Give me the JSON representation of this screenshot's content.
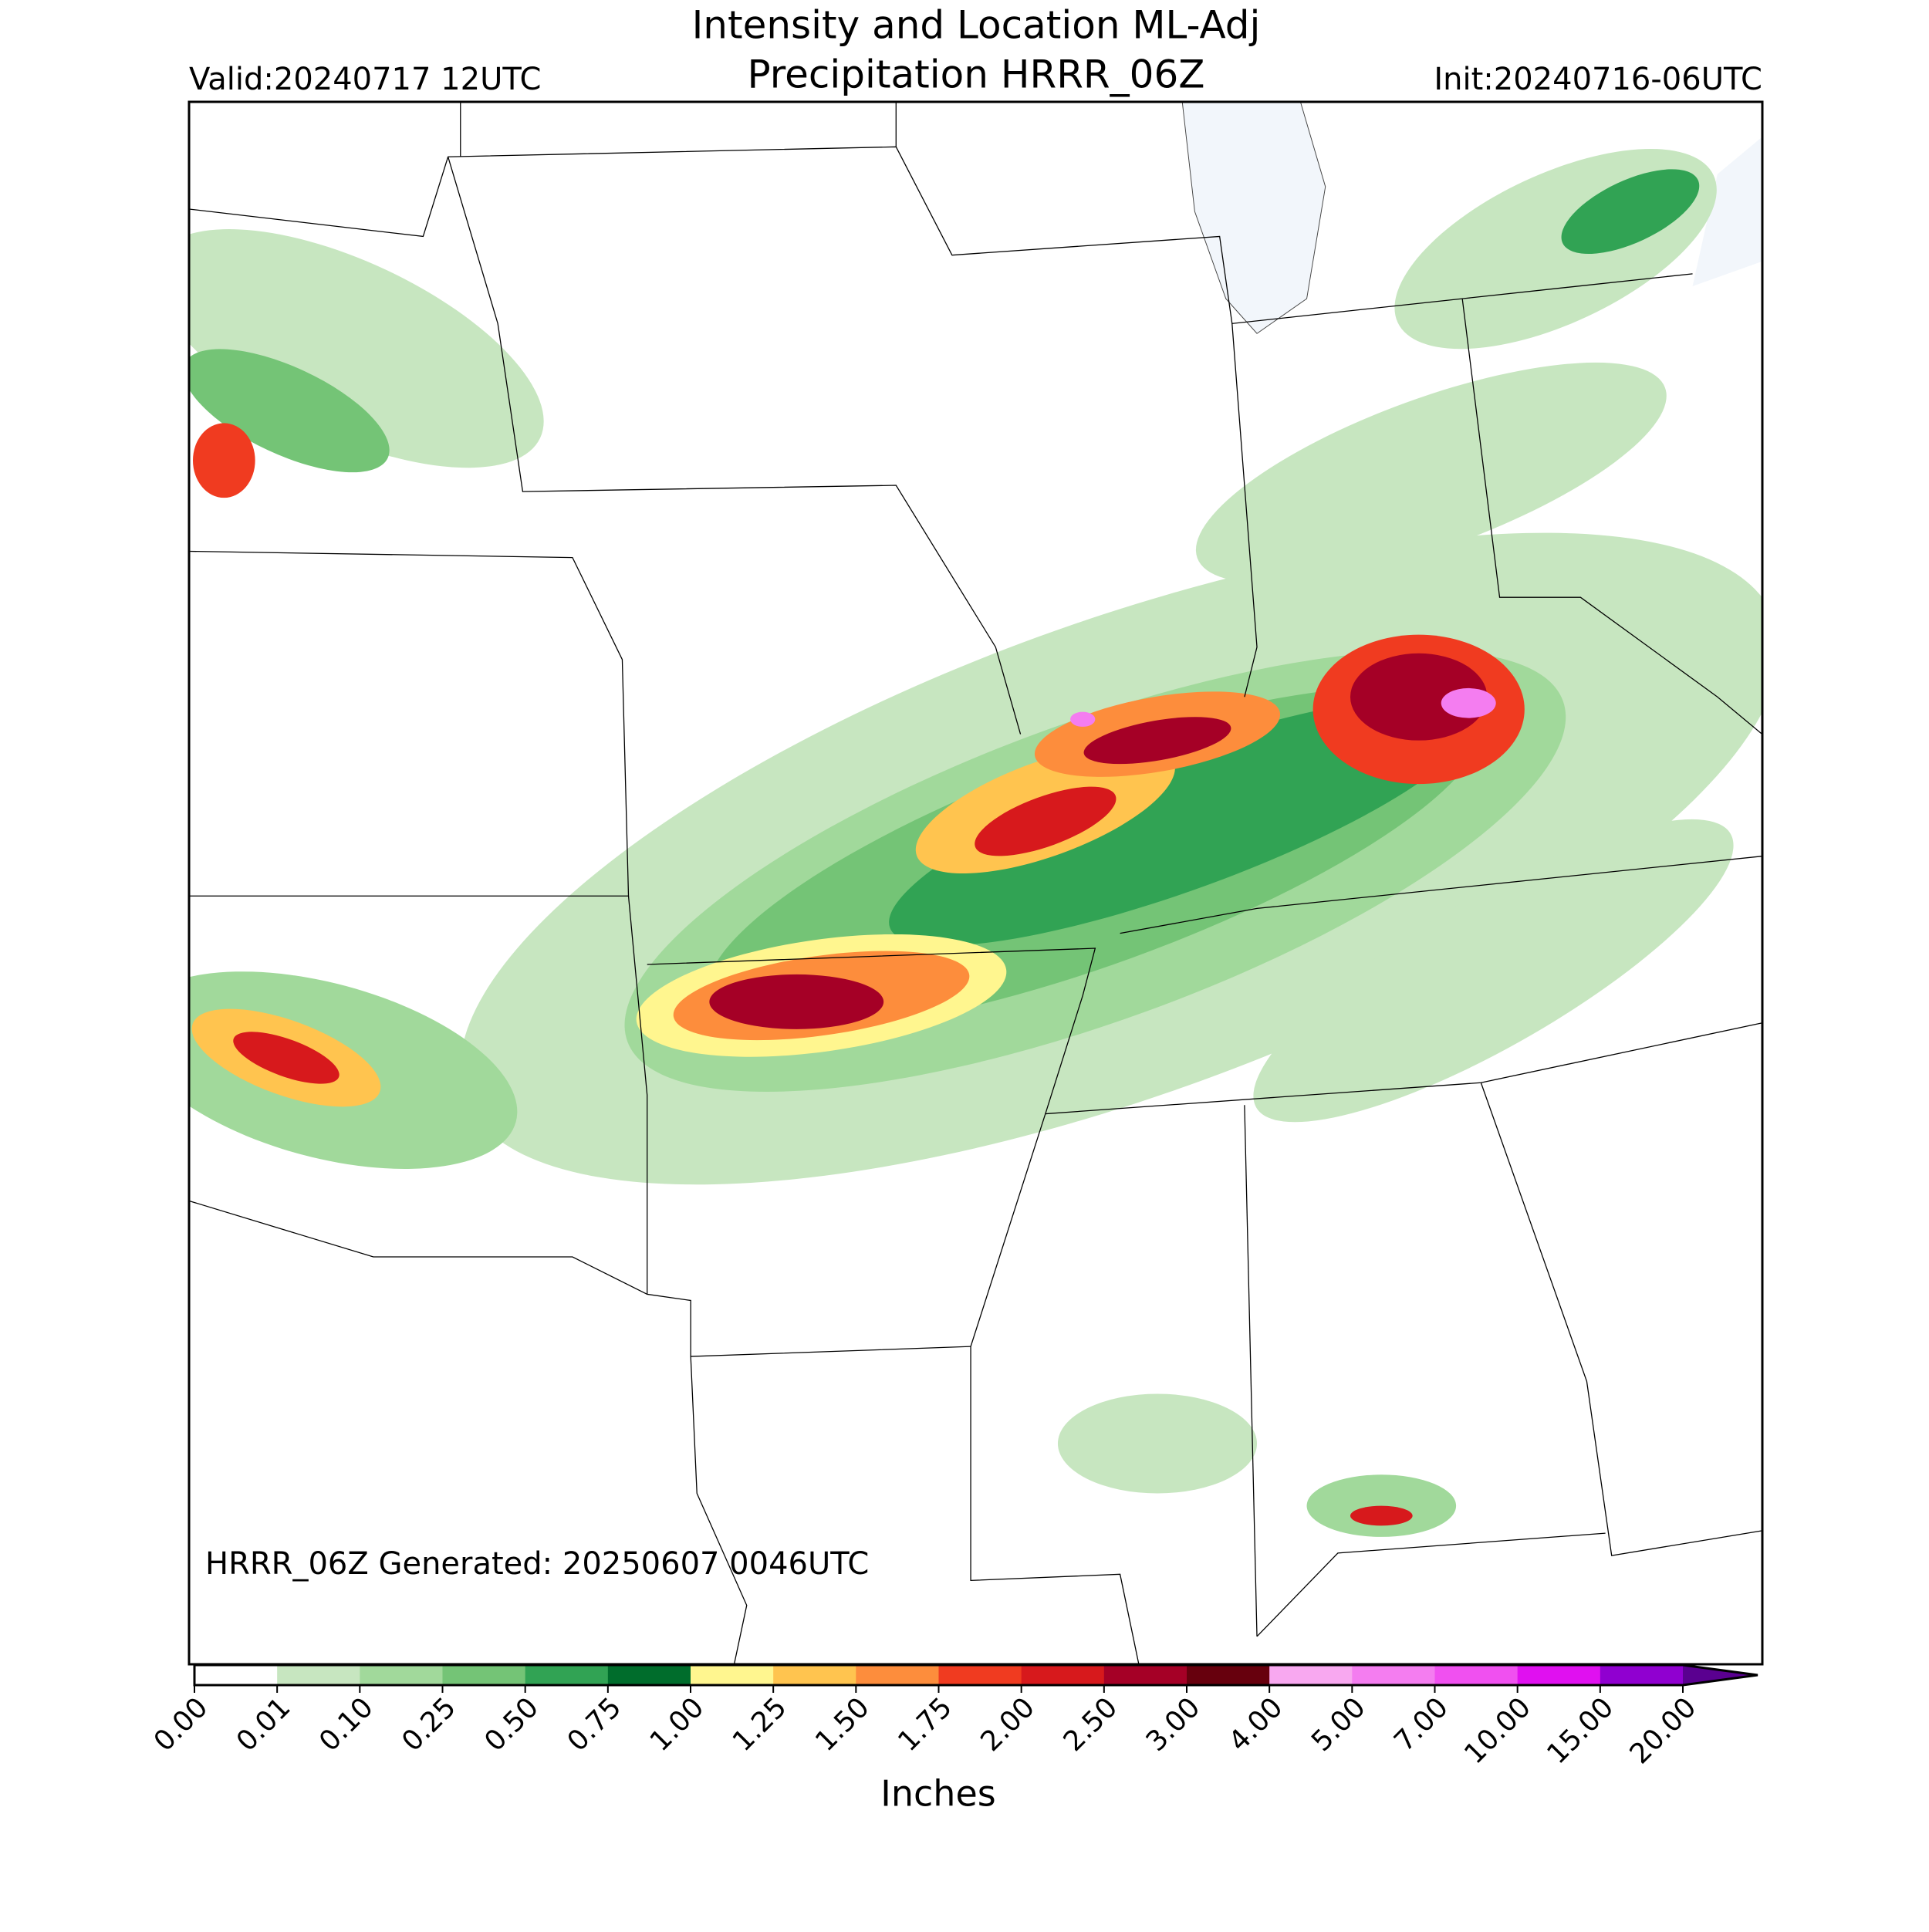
{
  "header": {
    "title_line1": "Intensity and Location ML-Adj",
    "title_line2": "Precipitation HRRR_06Z",
    "valid": "Valid:20240717 12UTC",
    "init": "Init:20240716-06UTC"
  },
  "map": {
    "note": "HRRR_06Z Generated: 20250607 0046UTC"
  },
  "colorbar": {
    "label": "Inches",
    "levels": [
      {
        "value": 0,
        "label": "0.00"
      },
      {
        "value": 0.01,
        "label": "0.01"
      },
      {
        "value": 0.1,
        "label": "0.10"
      },
      {
        "value": 0.25,
        "label": "0.25"
      },
      {
        "value": 0.5,
        "label": "0.50"
      },
      {
        "value": 0.75,
        "label": "0.75"
      },
      {
        "value": 1,
        "label": "1.00"
      },
      {
        "value": 1.25,
        "label": "1.25"
      },
      {
        "value": 1.5,
        "label": "1.50"
      },
      {
        "value": 1.75,
        "label": "1.75"
      },
      {
        "value": 2,
        "label": "2.00"
      },
      {
        "value": 2.5,
        "label": "2.50"
      },
      {
        "value": 3,
        "label": "3.00"
      },
      {
        "value": 4,
        "label": "4.00"
      },
      {
        "value": 5,
        "label": "5.00"
      },
      {
        "value": 7,
        "label": "7.00"
      },
      {
        "value": 10,
        "label": "10.00"
      },
      {
        "value": 15,
        "label": "15.00"
      },
      {
        "value": 20,
        "label": "20.00"
      }
    ],
    "colors": [
      "#ffffff",
      "#c7e6c0",
      "#a1d99b",
      "#74c476",
      "#31a354",
      "#006d2c",
      "#fff68f",
      "#ffc44f",
      "#fd8d3c",
      "#f03b20",
      "#d7191c",
      "#a50026",
      "#67000d",
      "#f8a8f0",
      "#f47df0",
      "#f050f0",
      "#e010f0",
      "#9000d0",
      "#5a0090"
    ]
  }
}
